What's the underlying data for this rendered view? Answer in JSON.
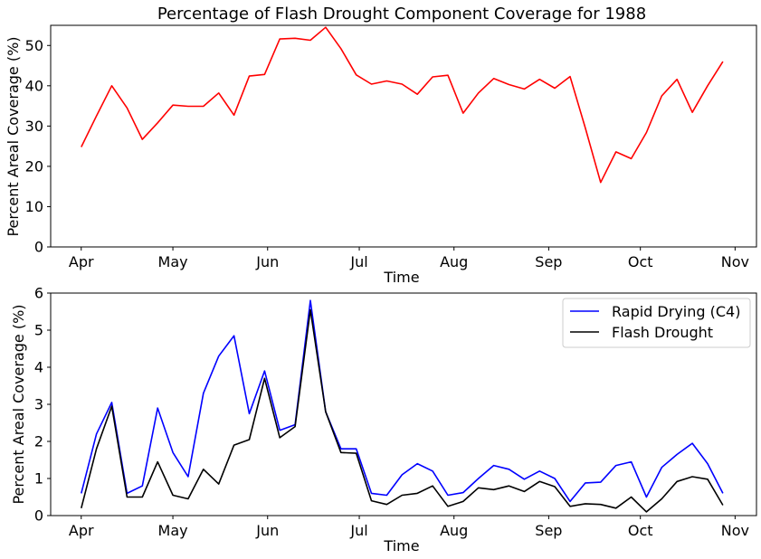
{
  "chart_data": [
    {
      "type": "line",
      "title": "Percentage of Flash Drought Component Coverage for 1988",
      "xlabel": "Time",
      "ylabel": "Percent Areal Coverage (%)",
      "x_ticks": [
        "Apr",
        "May",
        "Jun",
        "Jul",
        "Aug",
        "Sep",
        "Oct",
        "Nov"
      ],
      "x_tick_days": [
        0,
        30,
        61,
        91,
        122,
        153,
        183,
        214
      ],
      "x_range_days": [
        -10,
        221
      ],
      "ylim": [
        0,
        55
      ],
      "y_ticks": [
        0,
        10,
        20,
        30,
        40,
        50
      ],
      "grid": false,
      "legend": null,
      "x_days": [
        0,
        5,
        10,
        15,
        20,
        25,
        30,
        35,
        40,
        45,
        50,
        55,
        60,
        65,
        70,
        75,
        80,
        85,
        90,
        95,
        100,
        105,
        110,
        115,
        120,
        125,
        130,
        135,
        140,
        145,
        150,
        155,
        160,
        165,
        170,
        175,
        180,
        185,
        190,
        195,
        200,
        205,
        210
      ],
      "series": [
        {
          "name": "",
          "color": "#ff0000",
          "values": [
            24.8,
            32.5,
            40.0,
            34.5,
            26.7,
            30.8,
            35.2,
            34.9,
            34.9,
            38.2,
            32.7,
            42.4,
            42.8,
            51.6,
            51.8,
            51.3,
            54.5,
            49.2,
            42.7,
            40.4,
            41.2,
            40.4,
            37.9,
            42.2,
            42.6,
            33.2,
            38.2,
            41.8,
            40.3,
            39.2,
            41.6,
            39.4,
            42.3,
            29.5,
            16.0,
            23.6,
            21.9,
            28.4,
            37.5,
            41.6,
            33.4,
            40.0,
            46.0
          ]
        }
      ]
    },
    {
      "type": "line",
      "title": "",
      "xlabel": "Time",
      "ylabel": "Percent Areal Coverage (%)",
      "x_ticks": [
        "Apr",
        "May",
        "Jun",
        "Jul",
        "Aug",
        "Sep",
        "Oct",
        "Nov"
      ],
      "x_tick_days": [
        0,
        30,
        61,
        91,
        122,
        153,
        183,
        214
      ],
      "x_range_days": [
        -10,
        221
      ],
      "ylim": [
        0,
        6
      ],
      "y_ticks": [
        0,
        1,
        2,
        3,
        4,
        5,
        6
      ],
      "grid": false,
      "legend": "top-right",
      "x_days": [
        0,
        5,
        10,
        15,
        20,
        25,
        30,
        35,
        40,
        45,
        50,
        55,
        60,
        65,
        70,
        75,
        80,
        85,
        90,
        95,
        100,
        105,
        110,
        115,
        120,
        125,
        130,
        135,
        140,
        145,
        150,
        155,
        160,
        165,
        170,
        175,
        180,
        185,
        190,
        195,
        200,
        205,
        210
      ],
      "series": [
        {
          "name": "Rapid Drying (C4)",
          "color": "#0000ff",
          "values": [
            0.6,
            2.2,
            3.05,
            0.6,
            0.8,
            2.9,
            1.7,
            1.05,
            3.3,
            4.3,
            4.85,
            2.75,
            3.9,
            2.3,
            2.45,
            5.8,
            2.8,
            1.8,
            1.8,
            0.6,
            0.55,
            1.1,
            1.4,
            1.2,
            0.55,
            0.62,
            1.0,
            1.35,
            1.25,
            0.98,
            1.2,
            1.0,
            0.38,
            0.88,
            0.9,
            1.35,
            1.45,
            0.5,
            1.3,
            1.65,
            1.95,
            1.4,
            0.6
          ]
        },
        {
          "name": "Flash Drought",
          "color": "#000000",
          "values": [
            0.2,
            1.8,
            2.95,
            0.5,
            0.5,
            1.45,
            0.55,
            0.45,
            1.25,
            0.85,
            1.9,
            2.05,
            3.7,
            2.1,
            2.4,
            5.55,
            2.8,
            1.7,
            1.68,
            0.4,
            0.3,
            0.55,
            0.6,
            0.8,
            0.25,
            0.38,
            0.75,
            0.7,
            0.8,
            0.65,
            0.92,
            0.78,
            0.25,
            0.32,
            0.3,
            0.2,
            0.5,
            0.1,
            0.45,
            0.92,
            1.05,
            0.98,
            0.28
          ]
        }
      ]
    }
  ]
}
